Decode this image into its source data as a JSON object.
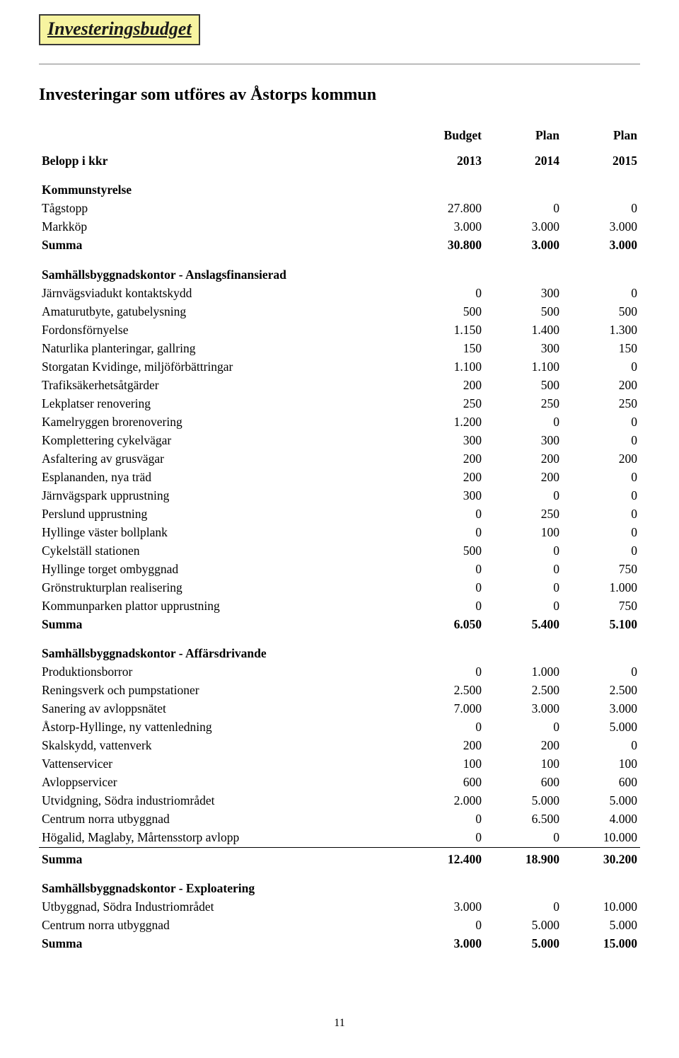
{
  "title": "Investeringsbudget",
  "subtitle": "Investeringar som utföres av Åstorps kommun",
  "page_number": "11",
  "header": {
    "c0": "Budget",
    "c1": "Plan",
    "c2": "Plan"
  },
  "years": {
    "label": "Belopp i kkr",
    "c0": "2013",
    "c1": "2014",
    "c2": "2015"
  },
  "sec1": {
    "name": "Kommunstyrelse",
    "r0": {
      "label": "Tågstopp",
      "c0": "27.800",
      "c1": "0",
      "c2": "0"
    },
    "r1": {
      "label": "Markköp",
      "c0": "3.000",
      "c1": "3.000",
      "c2": "3.000"
    },
    "sum": {
      "label": "Summa",
      "c0": "30.800",
      "c1": "3.000",
      "c2": "3.000"
    }
  },
  "sec2": {
    "name": "Samhällsbyggnadskontor - Anslagsfinansierad",
    "r0": {
      "label": "Järnvägsviadukt kontaktskydd",
      "c0": "0",
      "c1": "300",
      "c2": "0"
    },
    "r1": {
      "label": "Amaturutbyte, gatubelysning",
      "c0": "500",
      "c1": "500",
      "c2": "500"
    },
    "r2": {
      "label": "Fordonsförnyelse",
      "c0": "1.150",
      "c1": "1.400",
      "c2": "1.300"
    },
    "r3": {
      "label": "Naturlika planteringar, gallring",
      "c0": "150",
      "c1": "300",
      "c2": "150"
    },
    "r4": {
      "label": "Storgatan Kvidinge, miljöförbättringar",
      "c0": "1.100",
      "c1": "1.100",
      "c2": "0"
    },
    "r5": {
      "label": "Trafiksäkerhetsåtgärder",
      "c0": "200",
      "c1": "500",
      "c2": "200"
    },
    "r6": {
      "label": "Lekplatser renovering",
      "c0": "250",
      "c1": "250",
      "c2": "250"
    },
    "r7": {
      "label": "Kamelryggen brorenovering",
      "c0": "1.200",
      "c1": "0",
      "c2": "0"
    },
    "r8": {
      "label": "Komplettering cykelvägar",
      "c0": "300",
      "c1": "300",
      "c2": "0"
    },
    "r9": {
      "label": "Asfaltering av grusvägar",
      "c0": "200",
      "c1": "200",
      "c2": "200"
    },
    "r10": {
      "label": "Esplananden, nya träd",
      "c0": "200",
      "c1": "200",
      "c2": "0"
    },
    "r11": {
      "label": "Järnvägspark upprustning",
      "c0": "300",
      "c1": "0",
      "c2": "0"
    },
    "r12": {
      "label": "Perslund upprustning",
      "c0": "0",
      "c1": "250",
      "c2": "0"
    },
    "r13": {
      "label": "Hyllinge väster bollplank",
      "c0": "0",
      "c1": "100",
      "c2": "0"
    },
    "r14": {
      "label": "Cykelställ stationen",
      "c0": "500",
      "c1": "0",
      "c2": "0"
    },
    "r15": {
      "label": "Hyllinge torget ombyggnad",
      "c0": "0",
      "c1": "0",
      "c2": "750"
    },
    "r16": {
      "label": "Grönstrukturplan realisering",
      "c0": "0",
      "c1": "0",
      "c2": "1.000"
    },
    "r17": {
      "label": "Kommunparken plattor upprustning",
      "c0": "0",
      "c1": "0",
      "c2": "750"
    },
    "sum": {
      "label": "Summa",
      "c0": "6.050",
      "c1": "5.400",
      "c2": "5.100"
    }
  },
  "sec3": {
    "name": "Samhällsbyggnadskontor - Affärsdrivande",
    "r0": {
      "label": "Produktionsborror",
      "c0": "0",
      "c1": "1.000",
      "c2": "0"
    },
    "r1": {
      "label": "Reningsverk och pumpstationer",
      "c0": "2.500",
      "c1": "2.500",
      "c2": "2.500"
    },
    "r2": {
      "label": "Sanering av avloppsnätet",
      "c0": "7.000",
      "c1": "3.000",
      "c2": "3.000"
    },
    "r3": {
      "label": "Åstorp-Hyllinge, ny vattenledning",
      "c0": "0",
      "c1": "0",
      "c2": "5.000"
    },
    "r4": {
      "label": "Skalskydd, vattenverk",
      "c0": "200",
      "c1": "200",
      "c2": "0"
    },
    "r5": {
      "label": "Vattenservicer",
      "c0": "100",
      "c1": "100",
      "c2": "100"
    },
    "r6": {
      "label": "Avloppservicer",
      "c0": "600",
      "c1": "600",
      "c2": "600"
    },
    "r7": {
      "label": "Utvidgning, Södra industriområdet",
      "c0": "2.000",
      "c1": "5.000",
      "c2": "5.000"
    },
    "r8": {
      "label": "Centrum norra utbyggnad",
      "c0": "0",
      "c1": "6.500",
      "c2": "4.000"
    },
    "r9": {
      "label": "Högalid, Maglaby, Mårtensstorp avlopp",
      "c0": "0",
      "c1": "0",
      "c2": "10.000"
    },
    "sum": {
      "label": "Summa",
      "c0": "12.400",
      "c1": "18.900",
      "c2": "30.200"
    }
  },
  "sec4": {
    "name": "Samhällsbyggnadskontor - Exploatering",
    "r0": {
      "label": "Utbyggnad, Södra Industriområdet",
      "c0": "3.000",
      "c1": "0",
      "c2": "10.000"
    },
    "r1": {
      "label": "Centrum norra utbyggnad",
      "c0": "0",
      "c1": "5.000",
      "c2": "5.000"
    },
    "sum": {
      "label": "Summa",
      "c0": "3.000",
      "c1": "5.000",
      "c2": "15.000"
    }
  },
  "style": {
    "title_bg": "#f7f4a0",
    "title_border": "#3a3a3a",
    "font_family": "Times New Roman",
    "body_fontsize": 17.5,
    "title_fontsize": 26,
    "subtitle_fontsize": 24,
    "num_col_width": 110,
    "rule_color": "#808080"
  }
}
